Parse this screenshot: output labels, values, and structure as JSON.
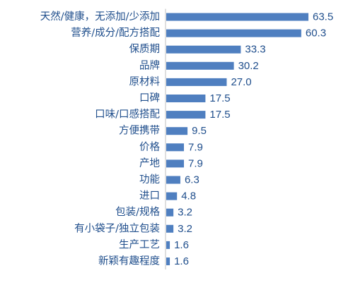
{
  "chart_data": {
    "type": "bar",
    "orientation": "horizontal",
    "categories": [
      "天然/健康，无添加/少添加",
      "营养/成分/配方搭配",
      "保质期",
      "品牌",
      "原材料",
      "口碑",
      "口味/口感搭配",
      "方便携带",
      "价格",
      "产地",
      "功能",
      "进口",
      "包装/规格",
      "有小袋子/独立包装",
      "生产工艺",
      "新颖有趣程度"
    ],
    "values": [
      63.5,
      60.3,
      33.3,
      30.2,
      27.0,
      17.5,
      17.5,
      9.5,
      7.9,
      7.9,
      6.3,
      4.8,
      3.2,
      3.2,
      1.6,
      1.6
    ],
    "value_labels": [
      "63.5",
      "60.3",
      "33.3",
      "30.2",
      "27.0",
      "17.5",
      "17.5",
      "9.5",
      "7.9",
      "7.9",
      "6.3",
      "4.8",
      "3.2",
      "3.2",
      "1.6",
      "1.6"
    ],
    "xlim": [
      0,
      63.5
    ],
    "bar_color": "#4f7fc0",
    "label_color": "#1f4e8c",
    "grid": false,
    "legend": "none"
  }
}
